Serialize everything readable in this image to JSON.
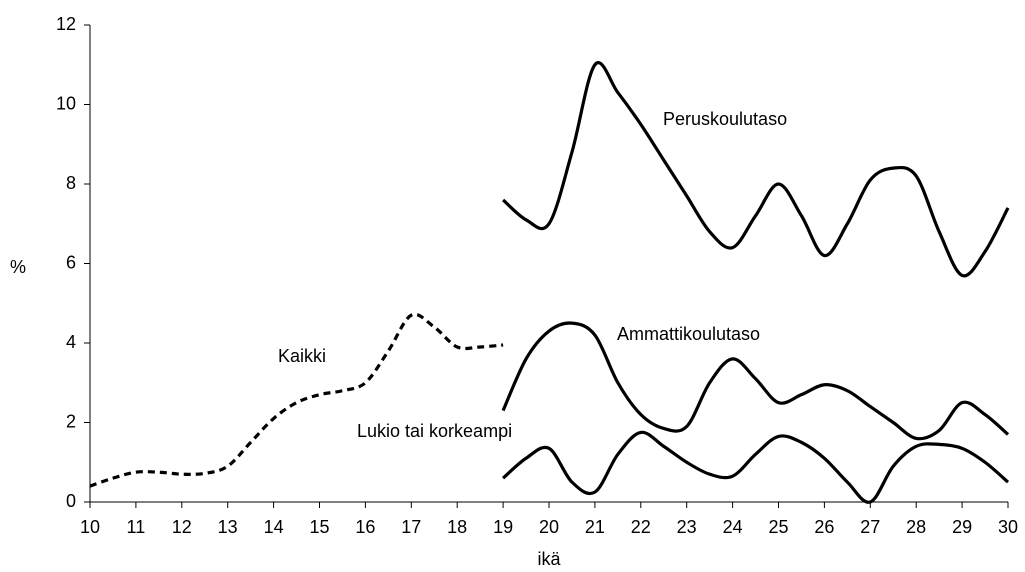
{
  "chart_data": {
    "type": "line",
    "xlabel": "ikä",
    "ylabel": "%",
    "x": [
      10,
      10.5,
      11,
      11.5,
      12,
      12.5,
      13,
      13.5,
      14,
      14.5,
      15,
      15.5,
      16,
      16.5,
      17,
      17.5,
      18,
      18.5,
      19,
      19.5,
      20,
      20.5,
      21,
      21.5,
      22,
      22.5,
      23,
      23.5,
      24,
      24.5,
      25,
      25.5,
      26,
      26.5,
      27,
      27.5,
      28,
      28.5,
      29,
      29.5,
      30
    ],
    "series": [
      {
        "name": "Kaikki",
        "color": "#000000",
        "dashed": true,
        "values": [
          0.4,
          0.6,
          0.75,
          0.75,
          0.7,
          0.72,
          0.9,
          1.5,
          2.1,
          2.5,
          2.7,
          2.8,
          3.0,
          3.8,
          4.7,
          4.4,
          3.9,
          3.9,
          3.95,
          null,
          null,
          null,
          null,
          null,
          null,
          null,
          null,
          null,
          null,
          null,
          null,
          null,
          null,
          null,
          null,
          null,
          null,
          null,
          null,
          null,
          null
        ]
      },
      {
        "name": "Peruskoulutaso",
        "color": "#000000",
        "dashed": false,
        "values": [
          null,
          null,
          null,
          null,
          null,
          null,
          null,
          null,
          null,
          null,
          null,
          null,
          null,
          null,
          null,
          null,
          null,
          null,
          7.6,
          7.1,
          7.0,
          8.8,
          11.0,
          10.3,
          9.5,
          8.6,
          7.7,
          6.8,
          6.4,
          7.2,
          8.0,
          7.2,
          6.2,
          7.0,
          8.1,
          8.4,
          8.2,
          6.8,
          5.7,
          6.3,
          7.4
        ]
      },
      {
        "name": "Ammattikoulutaso",
        "color": "#000000",
        "dashed": false,
        "values": [
          null,
          null,
          null,
          null,
          null,
          null,
          null,
          null,
          null,
          null,
          null,
          null,
          null,
          null,
          null,
          null,
          null,
          null,
          2.3,
          3.6,
          4.3,
          4.5,
          4.2,
          3.0,
          2.2,
          1.85,
          1.9,
          3.0,
          3.6,
          3.1,
          2.5,
          2.7,
          2.95,
          2.8,
          2.4,
          2.0,
          1.6,
          1.8,
          2.5,
          2.2,
          1.7
        ]
      },
      {
        "name": "Lukio tai korkeampi",
        "color": "#000000",
        "dashed": false,
        "values": [
          null,
          null,
          null,
          null,
          null,
          null,
          null,
          null,
          null,
          null,
          null,
          null,
          null,
          null,
          null,
          null,
          null,
          null,
          0.6,
          1.1,
          1.35,
          0.5,
          0.25,
          1.2,
          1.75,
          1.4,
          1.0,
          0.7,
          0.65,
          1.2,
          1.65,
          1.5,
          1.1,
          0.5,
          0.0,
          0.9,
          1.4,
          1.45,
          1.35,
          1.0,
          0.5
        ]
      }
    ],
    "xlim": [
      10,
      30
    ],
    "xticks": [
      10,
      11,
      12,
      13,
      14,
      15,
      16,
      17,
      18,
      19,
      20,
      21,
      22,
      23,
      24,
      25,
      26,
      27,
      28,
      29,
      30
    ],
    "ylim": [
      0,
      12
    ],
    "yticks": [
      0,
      2,
      4,
      6,
      8,
      10,
      12
    ],
    "grid": false
  }
}
